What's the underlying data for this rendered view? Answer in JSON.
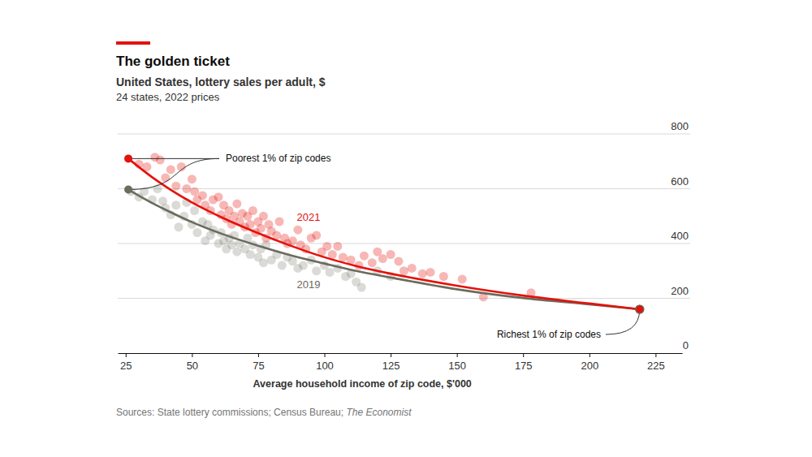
{
  "chart_data": {
    "type": "scatter",
    "title": "The golden ticket",
    "subtitle": [
      "United States, lottery sales per adult, $",
      "24 states, 2022 prices"
    ],
    "x_label": "Average household income of zip code, $'000",
    "source": [
      "Sources: State lottery commissions; Census Bureau; ",
      "The Economist"
    ],
    "annotations": [
      "Poorest 1% of zip codes",
      "Richest 1% of zip codes"
    ],
    "xlim": [
      22,
      235
    ],
    "xticks": [
      25,
      50,
      75,
      100,
      125,
      150,
      175,
      200,
      225
    ],
    "ylim": [
      0,
      800
    ],
    "yticks": [
      0,
      200,
      400,
      600,
      800
    ],
    "grid": true,
    "series": [
      {
        "name": "2021",
        "color": "#e3120b",
        "x": [
          30,
          33,
          36,
          38,
          40,
          42,
          44,
          46,
          48,
          50,
          51,
          52,
          54,
          55,
          57,
          58,
          60,
          61,
          62,
          63,
          64,
          65,
          66,
          67,
          68,
          69,
          70,
          71,
          72,
          73,
          74,
          75,
          76,
          77,
          78,
          79,
          80,
          82,
          83,
          85,
          86,
          88,
          90,
          91,
          93,
          95,
          97,
          99,
          101,
          103,
          105,
          107,
          110,
          113,
          115,
          118,
          120,
          122,
          125,
          128,
          130,
          133,
          137,
          140,
          145,
          152,
          160,
          178
        ],
        "values": [
          690,
          680,
          715,
          705,
          640,
          670,
          610,
          680,
          600,
          635,
          590,
          560,
          575,
          540,
          520,
          560,
          570,
          505,
          540,
          490,
          520,
          470,
          500,
          545,
          480,
          510,
          460,
          500,
          470,
          520,
          440,
          480,
          455,
          500,
          420,
          470,
          445,
          430,
          480,
          420,
          400,
          410,
          450,
          395,
          380,
          420,
          430,
          370,
          390,
          360,
          390,
          350,
          340,
          320,
          355,
          330,
          370,
          345,
          360,
          335,
          300,
          310,
          290,
          295,
          280,
          270,
          205,
          220
        ],
        "trend": {
          "type": "line",
          "x": [
            26,
            35,
            42,
            50,
            62,
            75,
            87,
            100,
            112,
            125,
            150,
            175,
            200,
            219
          ],
          "values": [
            710,
            642,
            596,
            550,
            492,
            438,
            393,
            350,
            318,
            290,
            246,
            210,
            181,
            160
          ]
        }
      },
      {
        "name": "2019",
        "color": "#6b6b5e",
        "x": [
          27,
          30,
          32,
          35,
          37,
          39,
          40,
          42,
          44,
          45,
          47,
          48,
          50,
          51,
          52,
          54,
          55,
          56,
          57,
          58,
          60,
          61,
          62,
          63,
          64,
          65,
          66,
          67,
          68,
          70,
          71,
          72,
          73,
          75,
          76,
          77,
          78,
          80,
          82,
          84,
          86,
          88,
          90,
          92,
          95,
          97,
          100,
          102,
          105,
          108,
          110,
          112,
          114,
          120,
          125
        ],
        "values": [
          590,
          570,
          590,
          560,
          600,
          555,
          530,
          505,
          540,
          460,
          500,
          550,
          470,
          520,
          440,
          480,
          410,
          470,
          430,
          450,
          400,
          440,
          410,
          380,
          420,
          395,
          430,
          370,
          400,
          380,
          420,
          360,
          395,
          350,
          380,
          330,
          395,
          340,
          360,
          320,
          350,
          335,
          310,
          320,
          340,
          300,
          320,
          295,
          310,
          280,
          290,
          260,
          240,
          300,
          280
        ],
        "trend": {
          "type": "line",
          "x": [
            26,
            35,
            42,
            50,
            62,
            75,
            87,
            100,
            112,
            125,
            150,
            175,
            200,
            219
          ],
          "values": [
            597,
            548,
            514,
            478,
            433,
            392,
            358,
            327,
            300,
            276,
            233,
            201,
            178,
            160
          ]
        }
      }
    ]
  }
}
